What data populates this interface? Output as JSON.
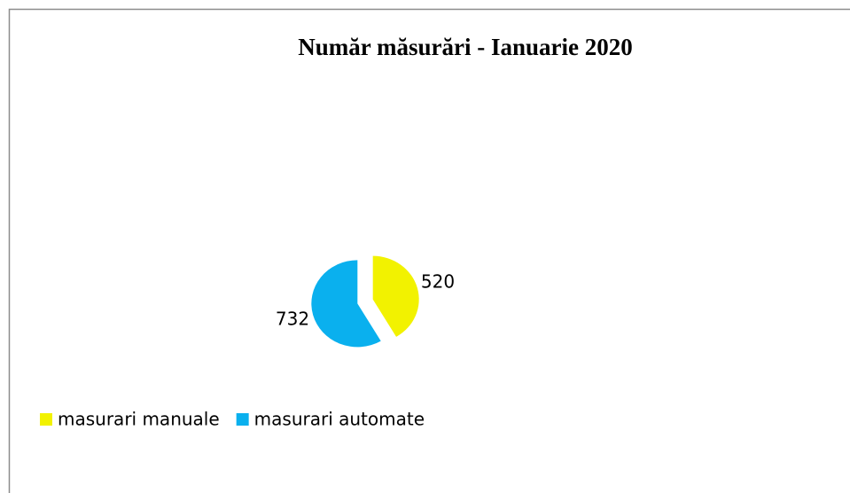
{
  "chart_data": {
    "type": "pie",
    "title": "Număr măsurări - Ianuarie 2020",
    "categories": [
      "masurari manuale",
      "masurari automate"
    ],
    "values": [
      520,
      732
    ],
    "colors": [
      "#f2f200",
      "#0ab0ee"
    ],
    "legend": "bottom-left"
  }
}
